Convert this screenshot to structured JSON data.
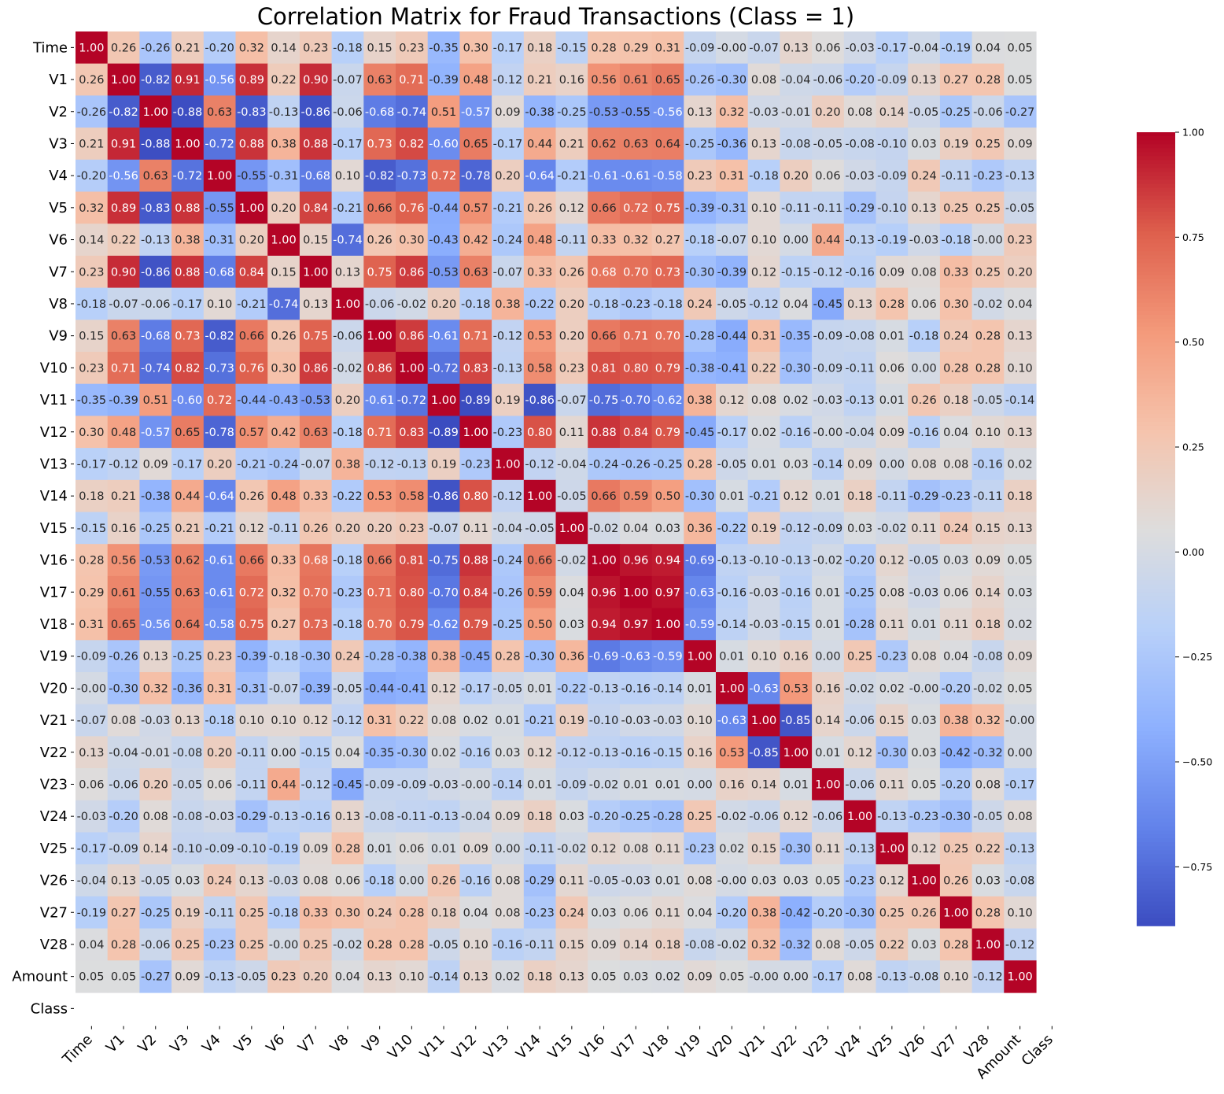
{
  "chart_data": {
    "type": "heatmap",
    "title": "Correlation Matrix for Fraud Transactions (Class = 1)",
    "xlabel": "",
    "ylabel": "",
    "colormap": "coolwarm",
    "labels": [
      "Time",
      "V1",
      "V2",
      "V3",
      "V4",
      "V5",
      "V6",
      "V7",
      "V8",
      "V9",
      "V10",
      "V11",
      "V12",
      "V13",
      "V14",
      "V15",
      "V16",
      "V17",
      "V18",
      "V19",
      "V20",
      "V21",
      "V22",
      "V23",
      "V24",
      "V25",
      "V26",
      "V27",
      "V28",
      "Amount",
      "Class"
    ],
    "colorbar": {
      "min": -0.89,
      "max": 1.0,
      "ticks": [
        1.0,
        0.75,
        0.5,
        0.25,
        0.0,
        -0.25,
        -0.5,
        -0.75
      ],
      "tick_labels": [
        "1.00",
        "0.75",
        "0.50",
        "0.25",
        "0.00",
        "−0.25",
        "−0.50",
        "−0.75"
      ]
    },
    "values": [
      [
        1.0,
        0.26,
        -0.26,
        0.21,
        -0.2,
        0.32,
        0.14,
        0.23,
        -0.18,
        0.15,
        0.23,
        -0.35,
        0.3,
        -0.17,
        0.18,
        -0.15,
        0.28,
        0.29,
        0.31,
        -0.09,
        -0.0,
        -0.07,
        0.13,
        0.06,
        -0.03,
        -0.17,
        -0.04,
        -0.19,
        0.04,
        0.05,
        null
      ],
      [
        0.26,
        1.0,
        -0.82,
        0.91,
        -0.56,
        0.89,
        0.22,
        0.9,
        -0.07,
        0.63,
        0.71,
        -0.39,
        0.48,
        -0.12,
        0.21,
        0.16,
        0.56,
        0.61,
        0.65,
        -0.26,
        -0.3,
        0.08,
        -0.04,
        -0.06,
        -0.2,
        -0.09,
        0.13,
        0.27,
        0.28,
        0.05,
        null
      ],
      [
        -0.26,
        -0.82,
        1.0,
        -0.88,
        0.63,
        -0.83,
        -0.13,
        -0.86,
        -0.06,
        -0.68,
        -0.74,
        0.51,
        -0.57,
        0.09,
        -0.38,
        -0.25,
        -0.53,
        -0.55,
        -0.56,
        0.13,
        0.32,
        -0.03,
        -0.01,
        0.2,
        0.08,
        0.14,
        -0.05,
        -0.25,
        -0.06,
        -0.27,
        null
      ],
      [
        0.21,
        0.91,
        -0.88,
        1.0,
        -0.72,
        0.88,
        0.38,
        0.88,
        -0.17,
        0.73,
        0.82,
        -0.6,
        0.65,
        -0.17,
        0.44,
        0.21,
        0.62,
        0.63,
        0.64,
        -0.25,
        -0.36,
        0.13,
        -0.08,
        -0.05,
        -0.08,
        -0.1,
        0.03,
        0.19,
        0.25,
        0.09,
        null
      ],
      [
        -0.2,
        -0.56,
        0.63,
        -0.72,
        1.0,
        -0.55,
        -0.31,
        -0.68,
        0.1,
        -0.82,
        -0.73,
        0.72,
        -0.78,
        0.2,
        -0.64,
        -0.21,
        -0.61,
        -0.61,
        -0.58,
        0.23,
        0.31,
        -0.18,
        0.2,
        0.06,
        -0.03,
        -0.09,
        0.24,
        -0.11,
        -0.23,
        -0.13,
        null
      ],
      [
        0.32,
        0.89,
        -0.83,
        0.88,
        -0.55,
        1.0,
        0.2,
        0.84,
        -0.21,
        0.66,
        0.76,
        -0.44,
        0.57,
        -0.21,
        0.26,
        0.12,
        0.66,
        0.72,
        0.75,
        -0.39,
        -0.31,
        0.1,
        -0.11,
        -0.11,
        -0.29,
        -0.1,
        0.13,
        0.25,
        0.25,
        -0.05,
        null
      ],
      [
        0.14,
        0.22,
        -0.13,
        0.38,
        -0.31,
        0.2,
        1.0,
        0.15,
        -0.74,
        0.26,
        0.3,
        -0.43,
        0.42,
        -0.24,
        0.48,
        -0.11,
        0.33,
        0.32,
        0.27,
        -0.18,
        -0.07,
        0.1,
        0.0,
        0.44,
        -0.13,
        -0.19,
        -0.03,
        -0.18,
        -0.0,
        0.23,
        null
      ],
      [
        0.23,
        0.9,
        -0.86,
        0.88,
        -0.68,
        0.84,
        0.15,
        1.0,
        0.13,
        0.75,
        0.86,
        -0.53,
        0.63,
        -0.07,
        0.33,
        0.26,
        0.68,
        0.7,
        0.73,
        -0.3,
        -0.39,
        0.12,
        -0.15,
        -0.12,
        -0.16,
        0.09,
        0.08,
        0.33,
        0.25,
        0.2,
        null
      ],
      [
        -0.18,
        -0.07,
        -0.06,
        -0.17,
        0.1,
        -0.21,
        -0.74,
        0.13,
        1.0,
        -0.06,
        -0.02,
        0.2,
        -0.18,
        0.38,
        -0.22,
        0.2,
        -0.18,
        -0.23,
        -0.18,
        0.24,
        -0.05,
        -0.12,
        0.04,
        -0.45,
        0.13,
        0.28,
        0.06,
        0.3,
        -0.02,
        0.04,
        null
      ],
      [
        0.15,
        0.63,
        -0.68,
        0.73,
        -0.82,
        0.66,
        0.26,
        0.75,
        -0.06,
        1.0,
        0.86,
        -0.61,
        0.71,
        -0.12,
        0.53,
        0.2,
        0.66,
        0.71,
        0.7,
        -0.28,
        -0.44,
        0.31,
        -0.35,
        -0.09,
        -0.08,
        0.01,
        -0.18,
        0.24,
        0.28,
        0.13,
        null
      ],
      [
        0.23,
        0.71,
        -0.74,
        0.82,
        -0.73,
        0.76,
        0.3,
        0.86,
        -0.02,
        0.86,
        1.0,
        -0.72,
        0.83,
        -0.13,
        0.58,
        0.23,
        0.81,
        0.8,
        0.79,
        -0.38,
        -0.41,
        0.22,
        -0.3,
        -0.09,
        -0.11,
        0.06,
        0.0,
        0.28,
        0.28,
        0.1,
        null
      ],
      [
        -0.35,
        -0.39,
        0.51,
        -0.6,
        0.72,
        -0.44,
        -0.43,
        -0.53,
        0.2,
        -0.61,
        -0.72,
        1.0,
        -0.89,
        0.19,
        -0.86,
        -0.07,
        -0.75,
        -0.7,
        -0.62,
        0.38,
        0.12,
        0.08,
        0.02,
        -0.03,
        -0.13,
        0.01,
        0.26,
        0.18,
        -0.05,
        -0.14,
        null
      ],
      [
        0.3,
        0.48,
        -0.57,
        0.65,
        -0.78,
        0.57,
        0.42,
        0.63,
        -0.18,
        0.71,
        0.83,
        -0.89,
        1.0,
        -0.23,
        0.8,
        0.11,
        0.88,
        0.84,
        0.79,
        -0.45,
        -0.17,
        0.02,
        -0.16,
        -0.0,
        -0.04,
        0.09,
        -0.16,
        0.04,
        0.1,
        0.13,
        null
      ],
      [
        -0.17,
        -0.12,
        0.09,
        -0.17,
        0.2,
        -0.21,
        -0.24,
        -0.07,
        0.38,
        -0.12,
        -0.13,
        0.19,
        -0.23,
        1.0,
        -0.12,
        -0.04,
        -0.24,
        -0.26,
        -0.25,
        0.28,
        -0.05,
        0.01,
        0.03,
        -0.14,
        0.09,
        0.0,
        0.08,
        0.08,
        -0.16,
        0.02,
        null
      ],
      [
        0.18,
        0.21,
        -0.38,
        0.44,
        -0.64,
        0.26,
        0.48,
        0.33,
        -0.22,
        0.53,
        0.58,
        -0.86,
        0.8,
        -0.12,
        1.0,
        -0.05,
        0.66,
        0.59,
        0.5,
        -0.3,
        0.01,
        -0.21,
        0.12,
        0.01,
        0.18,
        -0.11,
        -0.29,
        -0.23,
        -0.11,
        0.18,
        null
      ],
      [
        -0.15,
        0.16,
        -0.25,
        0.21,
        -0.21,
        0.12,
        -0.11,
        0.26,
        0.2,
        0.2,
        0.23,
        -0.07,
        0.11,
        -0.04,
        -0.05,
        1.0,
        -0.02,
        0.04,
        0.03,
        0.36,
        -0.22,
        0.19,
        -0.12,
        -0.09,
        0.03,
        -0.02,
        0.11,
        0.24,
        0.15,
        0.13,
        null
      ],
      [
        0.28,
        0.56,
        -0.53,
        0.62,
        -0.61,
        0.66,
        0.33,
        0.68,
        -0.18,
        0.66,
        0.81,
        -0.75,
        0.88,
        -0.24,
        0.66,
        -0.02,
        1.0,
        0.96,
        0.94,
        -0.69,
        -0.13,
        -0.1,
        -0.13,
        -0.02,
        -0.2,
        0.12,
        -0.05,
        0.03,
        0.09,
        0.05,
        null
      ],
      [
        0.29,
        0.61,
        -0.55,
        0.63,
        -0.61,
        0.72,
        0.32,
        0.7,
        -0.23,
        0.71,
        0.8,
        -0.7,
        0.84,
        -0.26,
        0.59,
        0.04,
        0.96,
        1.0,
        0.97,
        -0.63,
        -0.16,
        -0.03,
        -0.16,
        0.01,
        -0.25,
        0.08,
        -0.03,
        0.06,
        0.14,
        0.03,
        null
      ],
      [
        0.31,
        0.65,
        -0.56,
        0.64,
        -0.58,
        0.75,
        0.27,
        0.73,
        -0.18,
        0.7,
        0.79,
        -0.62,
        0.79,
        -0.25,
        0.5,
        0.03,
        0.94,
        0.97,
        1.0,
        -0.59,
        -0.14,
        -0.03,
        -0.15,
        0.01,
        -0.28,
        0.11,
        0.01,
        0.11,
        0.18,
        0.02,
        null
      ],
      [
        -0.09,
        -0.26,
        0.13,
        -0.25,
        0.23,
        -0.39,
        -0.18,
        -0.3,
        0.24,
        -0.28,
        -0.38,
        0.38,
        -0.45,
        0.28,
        -0.3,
        0.36,
        -0.69,
        -0.63,
        -0.59,
        1.0,
        0.01,
        0.1,
        0.16,
        0.0,
        0.25,
        -0.23,
        0.08,
        0.04,
        -0.08,
        0.09,
        null
      ],
      [
        -0.0,
        -0.3,
        0.32,
        -0.36,
        0.31,
        -0.31,
        -0.07,
        -0.39,
        -0.05,
        -0.44,
        -0.41,
        0.12,
        -0.17,
        -0.05,
        0.01,
        -0.22,
        -0.13,
        -0.16,
        -0.14,
        0.01,
        1.0,
        -0.63,
        0.53,
        0.16,
        -0.02,
        0.02,
        -0.0,
        -0.2,
        -0.02,
        0.05,
        null
      ],
      [
        -0.07,
        0.08,
        -0.03,
        0.13,
        -0.18,
        0.1,
        0.1,
        0.12,
        -0.12,
        0.31,
        0.22,
        0.08,
        0.02,
        0.01,
        -0.21,
        0.19,
        -0.1,
        -0.03,
        -0.03,
        0.1,
        -0.63,
        1.0,
        -0.85,
        0.14,
        -0.06,
        0.15,
        0.03,
        0.38,
        0.32,
        -0.0,
        null
      ],
      [
        0.13,
        -0.04,
        -0.01,
        -0.08,
        0.2,
        -0.11,
        0.0,
        -0.15,
        0.04,
        -0.35,
        -0.3,
        0.02,
        -0.16,
        0.03,
        0.12,
        -0.12,
        -0.13,
        -0.16,
        -0.15,
        0.16,
        0.53,
        -0.85,
        1.0,
        0.01,
        0.12,
        -0.3,
        0.03,
        -0.42,
        -0.32,
        0.0,
        null
      ],
      [
        0.06,
        -0.06,
        0.2,
        -0.05,
        0.06,
        -0.11,
        0.44,
        -0.12,
        -0.45,
        -0.09,
        -0.09,
        -0.03,
        -0.0,
        -0.14,
        0.01,
        -0.09,
        -0.02,
        0.01,
        0.01,
        0.0,
        0.16,
        0.14,
        0.01,
        1.0,
        -0.06,
        0.11,
        0.05,
        -0.2,
        0.08,
        -0.17,
        null
      ],
      [
        -0.03,
        -0.2,
        0.08,
        -0.08,
        -0.03,
        -0.29,
        -0.13,
        -0.16,
        0.13,
        -0.08,
        -0.11,
        -0.13,
        -0.04,
        0.09,
        0.18,
        0.03,
        -0.2,
        -0.25,
        -0.28,
        0.25,
        -0.02,
        -0.06,
        0.12,
        -0.06,
        1.0,
        -0.13,
        -0.23,
        -0.3,
        -0.05,
        0.08,
        null
      ],
      [
        -0.17,
        -0.09,
        0.14,
        -0.1,
        -0.09,
        -0.1,
        -0.19,
        0.09,
        0.28,
        0.01,
        0.06,
        0.01,
        0.09,
        0.0,
        -0.11,
        -0.02,
        0.12,
        0.08,
        0.11,
        -0.23,
        0.02,
        0.15,
        -0.3,
        0.11,
        -0.13,
        1.0,
        0.12,
        0.25,
        0.22,
        -0.13,
        null
      ],
      [
        -0.04,
        0.13,
        -0.05,
        0.03,
        0.24,
        0.13,
        -0.03,
        0.08,
        0.06,
        -0.18,
        0.0,
        0.26,
        -0.16,
        0.08,
        -0.29,
        0.11,
        -0.05,
        -0.03,
        0.01,
        0.08,
        -0.0,
        0.03,
        0.03,
        0.05,
        -0.23,
        0.12,
        1.0,
        0.26,
        0.03,
        -0.08,
        null
      ],
      [
        -0.19,
        0.27,
        -0.25,
        0.19,
        -0.11,
        0.25,
        -0.18,
        0.33,
        0.3,
        0.24,
        0.28,
        0.18,
        0.04,
        0.08,
        -0.23,
        0.24,
        0.03,
        0.06,
        0.11,
        0.04,
        -0.2,
        0.38,
        -0.42,
        -0.2,
        -0.3,
        0.25,
        0.26,
        1.0,
        0.28,
        0.1,
        null
      ],
      [
        0.04,
        0.28,
        -0.06,
        0.25,
        -0.23,
        0.25,
        -0.0,
        0.25,
        -0.02,
        0.28,
        0.28,
        -0.05,
        0.1,
        -0.16,
        -0.11,
        0.15,
        0.09,
        0.14,
        0.18,
        -0.08,
        -0.02,
        0.32,
        -0.32,
        0.08,
        -0.05,
        0.22,
        0.03,
        0.28,
        1.0,
        -0.12,
        null
      ],
      [
        0.05,
        0.05,
        -0.27,
        0.09,
        -0.13,
        -0.05,
        0.23,
        0.2,
        0.04,
        0.13,
        0.1,
        -0.14,
        0.13,
        0.02,
        0.18,
        0.13,
        0.05,
        0.03,
        0.02,
        0.09,
        0.05,
        -0.0,
        0.0,
        -0.17,
        0.08,
        -0.13,
        -0.08,
        0.1,
        -0.12,
        1.0,
        null
      ],
      [
        null,
        null,
        null,
        null,
        null,
        null,
        null,
        null,
        null,
        null,
        null,
        null,
        null,
        null,
        null,
        null,
        null,
        null,
        null,
        null,
        null,
        null,
        null,
        null,
        null,
        null,
        null,
        null,
        null,
        null,
        null
      ]
    ]
  }
}
